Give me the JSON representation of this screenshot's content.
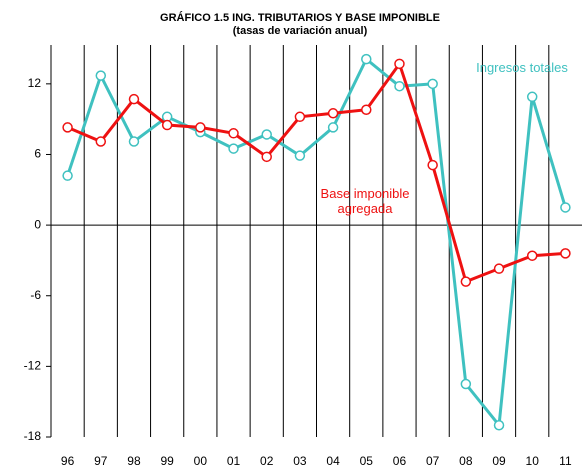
{
  "chart_data": {
    "type": "line",
    "title": "GRÁFICO 1.5  ING. TRIBUTARIOS  Y BASE IMPONIBLE",
    "subtitle": "(tasas de variación anual)",
    "categories": [
      "96",
      "97",
      "98",
      "99",
      "00",
      "01",
      "02",
      "03",
      "04",
      "05",
      "06",
      "07",
      "08",
      "09",
      "10",
      "11"
    ],
    "series": [
      {
        "name": "Ingresos totales",
        "color": "#3fc1c0",
        "values": [
          4.2,
          12.7,
          7.1,
          9.2,
          7.9,
          6.5,
          7.7,
          5.9,
          8.3,
          14.1,
          11.8,
          12.0,
          -13.5,
          -17.0,
          10.9,
          1.5
        ]
      },
      {
        "name": "Base imponible agregada",
        "color": "#ee1111",
        "values": [
          8.3,
          7.1,
          10.7,
          8.5,
          8.3,
          7.8,
          5.8,
          9.2,
          9.5,
          9.8,
          13.7,
          5.1,
          -4.8,
          -3.7,
          -2.6,
          -2.4
        ]
      }
    ],
    "ylim": [
      -18,
      15.3
    ],
    "yticks": [
      12,
      6,
      0,
      -6,
      -12,
      -18
    ],
    "grid": "vertical"
  }
}
